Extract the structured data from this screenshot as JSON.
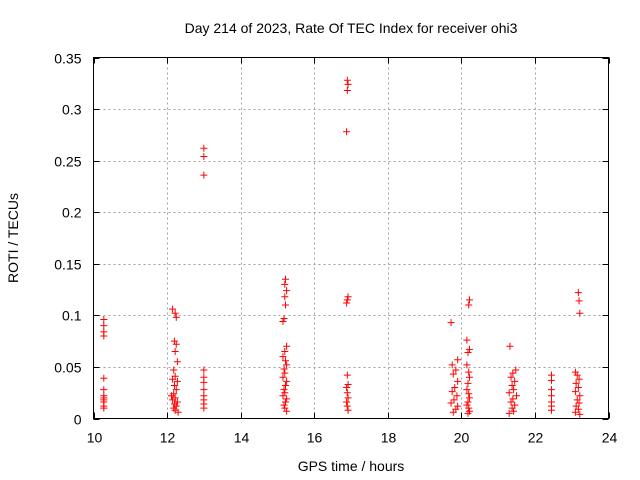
{
  "chart_data": {
    "type": "scatter",
    "title": "Day 214 of 2023, Rate Of TEC Index for receiver ohi3",
    "xlabel": "GPS time / hours",
    "ylabel": "ROTI / TECUs",
    "xlim": [
      10,
      24
    ],
    "ylim": [
      0,
      0.35
    ],
    "xticks": [
      10,
      12,
      14,
      16,
      18,
      20,
      22,
      24
    ],
    "yticks": [
      0,
      0.05,
      0.1,
      0.15,
      0.2,
      0.25,
      0.3,
      0.35
    ],
    "xtick_labels": [
      "10",
      "12",
      "14",
      "16",
      "18",
      "20",
      "22",
      "24"
    ],
    "ytick_labels": [
      "0",
      "0.05",
      "0.1",
      "0.15",
      "0.2",
      "0.25",
      "0.3",
      "0.35"
    ],
    "grid": true,
    "marker": "+",
    "color": "#ff0000",
    "series": [
      {
        "name": "ROTI",
        "points": [
          [
            10.28,
            0.096
          ],
          [
            10.28,
            0.09
          ],
          [
            10.28,
            0.084
          ],
          [
            10.28,
            0.08
          ],
          [
            10.28,
            0.039
          ],
          [
            10.28,
            0.028
          ],
          [
            10.28,
            0.022
          ],
          [
            10.28,
            0.02
          ],
          [
            10.28,
            0.018
          ],
          [
            10.28,
            0.016
          ],
          [
            10.28,
            0.012
          ],
          [
            10.28,
            0.01
          ],
          [
            12.15,
            0.106
          ],
          [
            12.22,
            0.102
          ],
          [
            12.25,
            0.098
          ],
          [
            12.2,
            0.075
          ],
          [
            12.25,
            0.072
          ],
          [
            12.22,
            0.065
          ],
          [
            12.28,
            0.055
          ],
          [
            12.18,
            0.047
          ],
          [
            12.22,
            0.041
          ],
          [
            12.15,
            0.038
          ],
          [
            12.28,
            0.036
          ],
          [
            12.2,
            0.032
          ],
          [
            12.25,
            0.028
          ],
          [
            12.18,
            0.024
          ],
          [
            12.22,
            0.02
          ],
          [
            12.15,
            0.018
          ],
          [
            12.28,
            0.016
          ],
          [
            12.2,
            0.014
          ],
          [
            12.25,
            0.012
          ],
          [
            12.18,
            0.01
          ],
          [
            12.22,
            0.008
          ],
          [
            12.3,
            0.006
          ],
          [
            12.12,
            0.022
          ],
          [
            13.0,
            0.262
          ],
          [
            13.0,
            0.254
          ],
          [
            13.0,
            0.236
          ],
          [
            13.0,
            0.047
          ],
          [
            13.0,
            0.04
          ],
          [
            13.0,
            0.035
          ],
          [
            13.0,
            0.028
          ],
          [
            13.0,
            0.022
          ],
          [
            13.0,
            0.018
          ],
          [
            13.0,
            0.014
          ],
          [
            13.0,
            0.01
          ],
          [
            15.22,
            0.135
          ],
          [
            15.2,
            0.13
          ],
          [
            15.25,
            0.124
          ],
          [
            15.2,
            0.118
          ],
          [
            15.22,
            0.11
          ],
          [
            15.18,
            0.097
          ],
          [
            15.15,
            0.094
          ],
          [
            15.25,
            0.07
          ],
          [
            15.2,
            0.065
          ],
          [
            15.15,
            0.06
          ],
          [
            15.22,
            0.056
          ],
          [
            15.25,
            0.052
          ],
          [
            15.18,
            0.048
          ],
          [
            15.2,
            0.044
          ],
          [
            15.15,
            0.04
          ],
          [
            15.25,
            0.036
          ],
          [
            15.22,
            0.032
          ],
          [
            15.18,
            0.028
          ],
          [
            15.2,
            0.025
          ],
          [
            15.15,
            0.022
          ],
          [
            15.25,
            0.019
          ],
          [
            15.22,
            0.016
          ],
          [
            15.18,
            0.013
          ],
          [
            15.2,
            0.01
          ],
          [
            15.25,
            0.007
          ],
          [
            16.9,
            0.328
          ],
          [
            16.92,
            0.324
          ],
          [
            16.9,
            0.318
          ],
          [
            16.88,
            0.278
          ],
          [
            16.92,
            0.118
          ],
          [
            16.9,
            0.115
          ],
          [
            16.88,
            0.112
          ],
          [
            16.9,
            0.042
          ],
          [
            16.92,
            0.033
          ],
          [
            16.88,
            0.03
          ],
          [
            16.9,
            0.025
          ],
          [
            16.92,
            0.02
          ],
          [
            16.88,
            0.016
          ],
          [
            16.9,
            0.012
          ],
          [
            16.92,
            0.008
          ],
          [
            19.72,
            0.093
          ],
          [
            19.9,
            0.057
          ],
          [
            19.75,
            0.052
          ],
          [
            19.85,
            0.047
          ],
          [
            19.78,
            0.043
          ],
          [
            19.9,
            0.036
          ],
          [
            19.82,
            0.03
          ],
          [
            19.75,
            0.026
          ],
          [
            19.88,
            0.022
          ],
          [
            19.8,
            0.018
          ],
          [
            19.72,
            0.015
          ],
          [
            19.9,
            0.012
          ],
          [
            19.85,
            0.009
          ],
          [
            19.78,
            0.006
          ],
          [
            20.22,
            0.115
          ],
          [
            20.2,
            0.11
          ],
          [
            20.15,
            0.076
          ],
          [
            20.22,
            0.067
          ],
          [
            20.18,
            0.064
          ],
          [
            20.15,
            0.052
          ],
          [
            20.2,
            0.045
          ],
          [
            20.22,
            0.04
          ],
          [
            20.18,
            0.034
          ],
          [
            20.15,
            0.028
          ],
          [
            20.2,
            0.024
          ],
          [
            20.22,
            0.02
          ],
          [
            20.18,
            0.016
          ],
          [
            20.15,
            0.013
          ],
          [
            20.2,
            0.01
          ],
          [
            20.22,
            0.007
          ],
          [
            20.18,
            0.005
          ],
          [
            21.32,
            0.07
          ],
          [
            21.48,
            0.047
          ],
          [
            21.4,
            0.044
          ],
          [
            21.35,
            0.04
          ],
          [
            21.45,
            0.036
          ],
          [
            21.38,
            0.032
          ],
          [
            21.42,
            0.028
          ],
          [
            21.3,
            0.025
          ],
          [
            21.5,
            0.022
          ],
          [
            21.4,
            0.019
          ],
          [
            21.35,
            0.016
          ],
          [
            21.45,
            0.013
          ],
          [
            21.38,
            0.01
          ],
          [
            21.42,
            0.007
          ],
          [
            21.3,
            0.005
          ],
          [
            22.45,
            0.042
          ],
          [
            22.45,
            0.037
          ],
          [
            22.45,
            0.028
          ],
          [
            22.45,
            0.022
          ],
          [
            22.45,
            0.016
          ],
          [
            22.45,
            0.012
          ],
          [
            22.45,
            0.008
          ],
          [
            23.18,
            0.122
          ],
          [
            23.2,
            0.114
          ],
          [
            23.22,
            0.102
          ],
          [
            23.1,
            0.045
          ],
          [
            23.15,
            0.042
          ],
          [
            23.2,
            0.038
          ],
          [
            23.12,
            0.034
          ],
          [
            23.18,
            0.03
          ],
          [
            23.1,
            0.026
          ],
          [
            23.22,
            0.022
          ],
          [
            23.15,
            0.018
          ],
          [
            23.2,
            0.015
          ],
          [
            23.12,
            0.012
          ],
          [
            23.18,
            0.009
          ],
          [
            23.1,
            0.006
          ],
          [
            23.22,
            0.004
          ]
        ]
      }
    ]
  }
}
